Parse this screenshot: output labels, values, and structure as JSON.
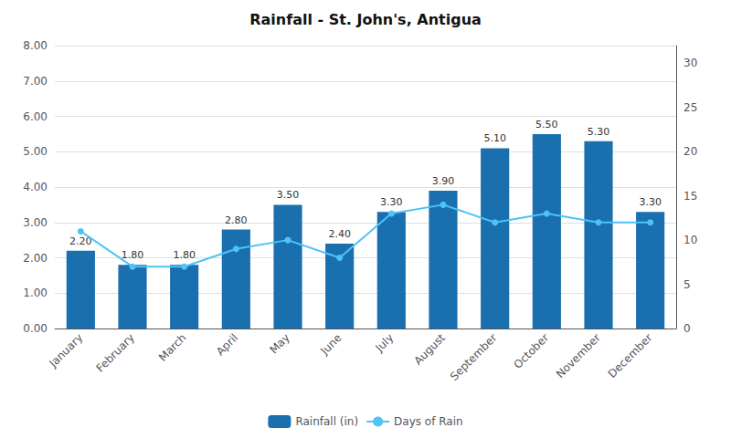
{
  "chart_data": {
    "type": "bar",
    "title": "Rainfall - St. John's, Antigua",
    "categories": [
      "January",
      "February",
      "March",
      "April",
      "May",
      "June",
      "July",
      "August",
      "September",
      "October",
      "November",
      "December"
    ],
    "series": [
      {
        "name": "Rainfall (in)",
        "type": "bar",
        "color": "#1a6faf",
        "values": [
          2.2,
          1.8,
          1.8,
          2.8,
          3.5,
          2.4,
          3.3,
          3.9,
          5.1,
          5.5,
          5.3,
          3.3
        ],
        "value_labels": [
          "2.20",
          "1.80",
          "1.80",
          "2.80",
          "3.50",
          "2.40",
          "3.30",
          "3.90",
          "5.10",
          "5.50",
          "5.30",
          "3.30"
        ],
        "data_labels": true
      },
      {
        "name": "Days of Rain",
        "type": "line",
        "color": "#4dc3f7",
        "marker": "circle",
        "axis": "y2",
        "values": [
          11,
          7,
          7,
          9,
          10,
          8,
          13,
          14,
          12,
          13,
          12,
          12
        ]
      }
    ],
    "ylim": [
      0,
      8.0
    ],
    "yticks": [
      {
        "value": 0.0,
        "label": "0.00"
      },
      {
        "value": 1.0,
        "label": "1.00"
      },
      {
        "value": 2.0,
        "label": "2.00"
      },
      {
        "value": 3.0,
        "label": "3.00"
      },
      {
        "value": 4.0,
        "label": "4.00"
      },
      {
        "value": 5.0,
        "label": "5.00"
      },
      {
        "value": 6.0,
        "label": "6.00"
      },
      {
        "value": 7.0,
        "label": "7.00"
      },
      {
        "value": 8.0,
        "label": "8.00"
      }
    ],
    "y2lim": [
      0,
      32
    ],
    "y2ticks": [
      0,
      5,
      10,
      15,
      20,
      25,
      30
    ],
    "grid": true,
    "legend": "bottom"
  }
}
